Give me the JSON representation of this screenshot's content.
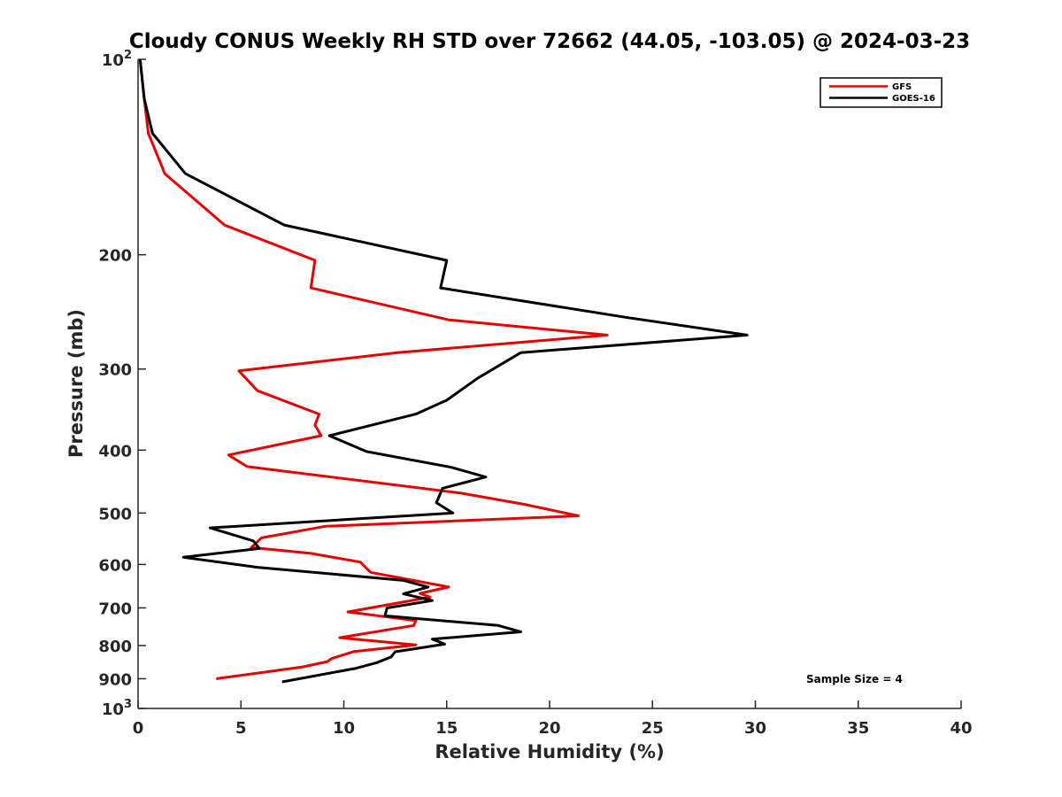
{
  "chart_data": {
    "type": "line",
    "title": "Cloudy CONUS Weekly RH STD over 72662 (44.05, -103.05) @ 2024-03-23",
    "xlabel": "Relative Humidity (%)",
    "ylabel": "Pressure (mb)",
    "xlim": [
      0,
      40
    ],
    "ylim": [
      100,
      1000
    ],
    "y_scale": "log",
    "y_reversed": true,
    "grid": false,
    "legend_position": "top-right",
    "x_ticks": [
      0,
      5,
      10,
      15,
      20,
      25,
      30,
      35,
      40
    ],
    "x_tick_labels": [
      "0",
      "5",
      "10",
      "15",
      "20",
      "25",
      "30",
      "35",
      "40"
    ],
    "y_ticks": [
      100,
      200,
      300,
      400,
      500,
      600,
      700,
      800,
      900,
      1000
    ],
    "y_tick_labels": [
      {
        "base": "10",
        "exp": "2"
      },
      {
        "base": "200",
        "exp": ""
      },
      {
        "base": "300",
        "exp": ""
      },
      {
        "base": "400",
        "exp": ""
      },
      {
        "base": "500",
        "exp": ""
      },
      {
        "base": "600",
        "exp": ""
      },
      {
        "base": "700",
        "exp": ""
      },
      {
        "base": "800",
        "exp": ""
      },
      {
        "base": "900",
        "exp": ""
      },
      {
        "base": "10",
        "exp": "3"
      }
    ],
    "annotation": "Sample Size = 4",
    "series": [
      {
        "name": "GFS",
        "color": "#e60000",
        "points": [
          [
            0.1,
            100
          ],
          [
            0.3,
            115
          ],
          [
            0.5,
            130
          ],
          [
            1.3,
            150
          ],
          [
            4.2,
            180
          ],
          [
            8.6,
            204
          ],
          [
            8.4,
            225
          ],
          [
            15.1,
            252
          ],
          [
            22.8,
            266
          ],
          [
            12.6,
            283
          ],
          [
            4.9,
            302
          ],
          [
            5.8,
            324
          ],
          [
            8.8,
            352
          ],
          [
            8.6,
            366
          ],
          [
            8.9,
            380
          ],
          [
            4.4,
            407
          ],
          [
            5.3,
            424
          ],
          [
            15.7,
            466
          ],
          [
            18.8,
            485
          ],
          [
            21.4,
            505
          ],
          [
            9.1,
            524
          ],
          [
            6.0,
            546
          ],
          [
            5.5,
            565
          ],
          [
            8.4,
            577
          ],
          [
            10.8,
            595
          ],
          [
            11.3,
            617
          ],
          [
            15.1,
            650
          ],
          [
            13.7,
            665
          ],
          [
            14.2,
            674
          ],
          [
            10.2,
            710
          ],
          [
            13.5,
            732
          ],
          [
            13.4,
            745
          ],
          [
            9.8,
            778
          ],
          [
            13.5,
            798
          ],
          [
            10.5,
            817
          ],
          [
            9.4,
            838
          ],
          [
            9.2,
            847
          ],
          [
            8.0,
            863
          ],
          [
            3.8,
            900
          ]
        ]
      },
      {
        "name": "GOES-16",
        "color": "#000000",
        "points": [
          [
            0.1,
            100
          ],
          [
            0.3,
            115
          ],
          [
            0.7,
            130
          ],
          [
            2.3,
            150
          ],
          [
            7.1,
            180
          ],
          [
            15.0,
            204
          ],
          [
            14.7,
            225
          ],
          [
            23.8,
            250
          ],
          [
            29.6,
            266
          ],
          [
            18.6,
            283
          ],
          [
            16.5,
            310
          ],
          [
            15.0,
            335
          ],
          [
            13.5,
            352
          ],
          [
            9.3,
            380
          ],
          [
            11.1,
            402
          ],
          [
            15.2,
            425
          ],
          [
            16.9,
            440
          ],
          [
            14.8,
            458
          ],
          [
            14.5,
            482
          ],
          [
            15.3,
            500
          ],
          [
            3.5,
            527
          ],
          [
            5.6,
            552
          ],
          [
            5.9,
            567
          ],
          [
            2.2,
            585
          ],
          [
            5.8,
            606
          ],
          [
            12.9,
            635
          ],
          [
            14.1,
            650
          ],
          [
            12.9,
            666
          ],
          [
            14.3,
            682
          ],
          [
            12.1,
            700
          ],
          [
            12.0,
            720
          ],
          [
            17.5,
            745
          ],
          [
            18.6,
            762
          ],
          [
            14.3,
            782
          ],
          [
            14.9,
            796
          ],
          [
            12.5,
            818
          ],
          [
            12.3,
            833
          ],
          [
            11.6,
            850
          ],
          [
            10.6,
            867
          ],
          [
            7.0,
            910
          ]
        ]
      }
    ]
  }
}
